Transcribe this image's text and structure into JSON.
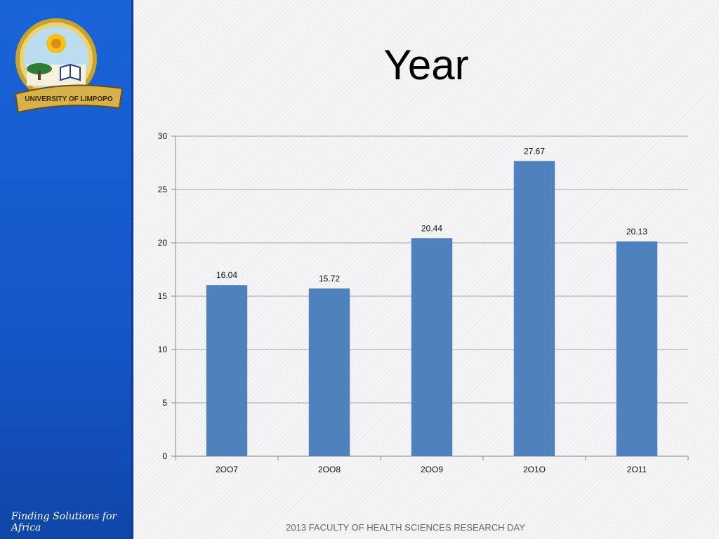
{
  "slide": {
    "title": "Year",
    "footer": "2013 FACULTY OF HEALTH SCIENCES RESEARCH DAY",
    "tagline": "Finding Solutions for Africa",
    "logo_text": "UNIVERSITY OF LIMPOPO"
  },
  "colors": {
    "bar": "#4f81bd",
    "sidebar": "#1a63d8",
    "gridline": "#a6a6a6"
  },
  "chart_data": {
    "type": "bar",
    "categories": [
      "2OO7",
      "2OO8",
      "2OO9",
      "2O1O",
      "2O11"
    ],
    "values": [
      16.04,
      15.72,
      20.44,
      27.67,
      20.13
    ],
    "data_labels": [
      "16.04",
      "15.72",
      "20.44",
      "27.67",
      "20.13"
    ],
    "xlabel": "",
    "ylabel": "",
    "ylim": [
      0,
      30
    ],
    "yticks": [
      0,
      5,
      10,
      15,
      20,
      25,
      30
    ],
    "grid": true,
    "legend": "none"
  }
}
